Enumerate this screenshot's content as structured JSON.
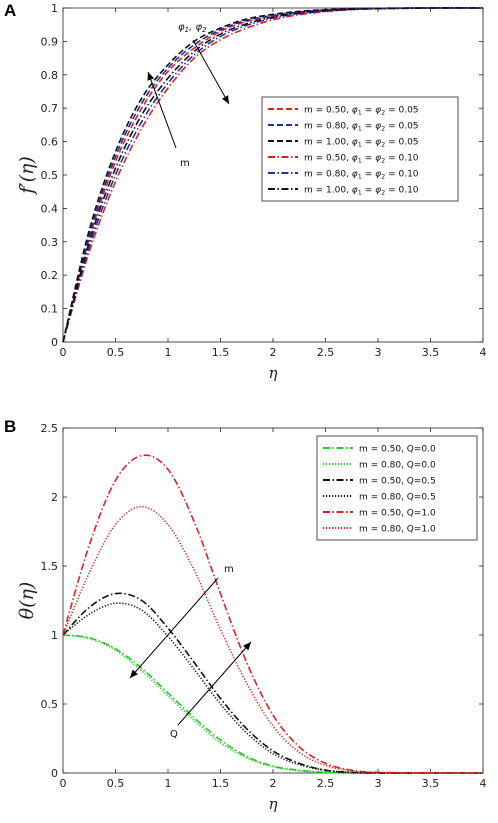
{
  "chart_data": [
    {
      "panel": "A",
      "type": "line",
      "xlabel": "η",
      "ylabel": "f′(η)",
      "xlim": [
        0,
        4
      ],
      "ylim": [
        0,
        1
      ],
      "xticks": [
        "0",
        "0.5",
        "1",
        "1.5",
        "2",
        "2.5",
        "3",
        "3.5",
        "4"
      ],
      "yticks": [
        "0",
        "0.1",
        "0.2",
        "0.3",
        "0.4",
        "0.5",
        "0.6",
        "0.7",
        "0.8",
        "0.9",
        "1"
      ],
      "legend_position": "center-right",
      "annotations": [
        {
          "text": "φ1, φ2",
          "base": "φ",
          "sub1": "1",
          "sep": ", ",
          "sub2": "2"
        },
        {
          "text": "m"
        }
      ],
      "x": [
        0,
        0.25,
        0.5,
        0.75,
        1,
        1.25,
        1.5,
        1.75,
        2,
        2.25,
        2.5,
        2.75,
        3,
        3.5,
        4
      ],
      "series": [
        {
          "name": "m  = 0.50, φ1 = φ2 = 0.05",
          "legend_prefix": "m  = 0.50, ",
          "phi": "0.05",
          "color": "#e02020",
          "dash": "dash",
          "values": [
            0,
            0.31,
            0.54,
            0.7,
            0.81,
            0.88,
            0.93,
            0.96,
            0.975,
            0.987,
            0.993,
            0.997,
            0.999,
            1,
            1
          ]
        },
        {
          "name": "m  = 0.80, φ1 = φ2 = 0.05",
          "legend_prefix": "m  = 0.80, ",
          "phi": "0.05",
          "color": "#1a2fb0",
          "dash": "dash",
          "values": [
            0,
            0.32,
            0.555,
            0.715,
            0.82,
            0.89,
            0.935,
            0.963,
            0.978,
            0.988,
            0.994,
            0.997,
            0.999,
            1,
            1
          ]
        },
        {
          "name": "m  = 1.00, φ1 = φ2 = 0.05",
          "legend_prefix": "m  = 1.00, ",
          "phi": "0.05",
          "color": "#111111",
          "dash": "dash",
          "values": [
            0,
            0.335,
            0.57,
            0.73,
            0.83,
            0.9,
            0.94,
            0.967,
            0.981,
            0.99,
            0.995,
            0.998,
            0.999,
            1,
            1
          ]
        },
        {
          "name": "m  = 0.50, φ1 = φ2 = 0.10",
          "legend_prefix": "m  = 0.50, ",
          "phi": "0.10",
          "color": "#e02020",
          "dash": "dashdot",
          "values": [
            0,
            0.27,
            0.48,
            0.64,
            0.76,
            0.85,
            0.905,
            0.94,
            0.965,
            0.98,
            0.989,
            0.995,
            0.998,
            1,
            1
          ]
        },
        {
          "name": "m  = 0.80, φ1 = φ2 = 0.10",
          "legend_prefix": "m  = 0.80, ",
          "phi": "0.10",
          "color": "#1a2fb0",
          "dash": "dashdot",
          "values": [
            0,
            0.285,
            0.5,
            0.66,
            0.775,
            0.86,
            0.915,
            0.948,
            0.97,
            0.983,
            0.991,
            0.996,
            0.998,
            1,
            1
          ]
        },
        {
          "name": "m  = 1.00, φ1 = φ2 = 0.10",
          "legend_prefix": "m  = 1.00, ",
          "phi": "0.10",
          "color": "#111111",
          "dash": "dashdot",
          "values": [
            0,
            0.3,
            0.52,
            0.68,
            0.79,
            0.87,
            0.922,
            0.953,
            0.973,
            0.985,
            0.992,
            0.996,
            0.998,
            1,
            1
          ]
        }
      ]
    },
    {
      "panel": "B",
      "type": "line",
      "xlabel": "η",
      "ylabel": "θ(η)",
      "xlim": [
        0,
        4
      ],
      "ylim": [
        0,
        2.5
      ],
      "xticks": [
        "0",
        "0.5",
        "1",
        "1.5",
        "2",
        "2.5",
        "3",
        "3.5",
        "4"
      ],
      "yticks": [
        "0",
        "0.5",
        "1",
        "1.5",
        "2",
        "2.5"
      ],
      "legend_position": "top-right",
      "annotations": [
        {
          "text": "m"
        },
        {
          "text": "Q"
        }
      ],
      "x": [
        0,
        0.25,
        0.5,
        0.75,
        1,
        1.25,
        1.5,
        1.75,
        2,
        2.25,
        2.5,
        2.75,
        3,
        3.5,
        4
      ],
      "series": [
        {
          "name": "m  = 0.50, Q=0.0",
          "color": "#22cc22",
          "dash": "dashdot",
          "values": [
            1,
            0.98,
            0.9,
            0.76,
            0.58,
            0.4,
            0.24,
            0.12,
            0.05,
            0.02,
            0.005,
            0,
            0,
            0,
            0
          ]
        },
        {
          "name": "m  = 0.80, Q=0.0",
          "color": "#22cc22",
          "dash": "dot",
          "values": [
            1,
            0.975,
            0.89,
            0.74,
            0.56,
            0.38,
            0.22,
            0.11,
            0.045,
            0.015,
            0.004,
            0,
            0,
            0,
            0
          ]
        },
        {
          "name": "m  = 0.50, Q=0.5",
          "color": "#111111",
          "dash": "dashdot",
          "values": [
            1,
            1.2,
            1.3,
            1.25,
            1.05,
            0.8,
            0.54,
            0.32,
            0.16,
            0.07,
            0.02,
            0.005,
            0,
            0,
            0
          ]
        },
        {
          "name": "m  = 0.80, Q=0.5",
          "color": "#111111",
          "dash": "dot",
          "values": [
            1,
            1.15,
            1.23,
            1.18,
            0.99,
            0.75,
            0.5,
            0.29,
            0.14,
            0.06,
            0.02,
            0.004,
            0,
            0,
            0
          ]
        },
        {
          "name": "m  = 0.50, Q=1.0",
          "color": "#e02020",
          "dash": "dashdot",
          "values": [
            1,
            1.65,
            2.12,
            2.3,
            2.2,
            1.82,
            1.3,
            0.8,
            0.42,
            0.19,
            0.07,
            0.02,
            0.005,
            0,
            0
          ]
        },
        {
          "name": "m  = 0.80, Q=1.0",
          "color": "#e02020",
          "dash": "dot",
          "values": [
            1,
            1.45,
            1.8,
            1.93,
            1.8,
            1.47,
            1.04,
            0.65,
            0.34,
            0.15,
            0.055,
            0.015,
            0.004,
            0,
            0
          ]
        }
      ]
    }
  ]
}
